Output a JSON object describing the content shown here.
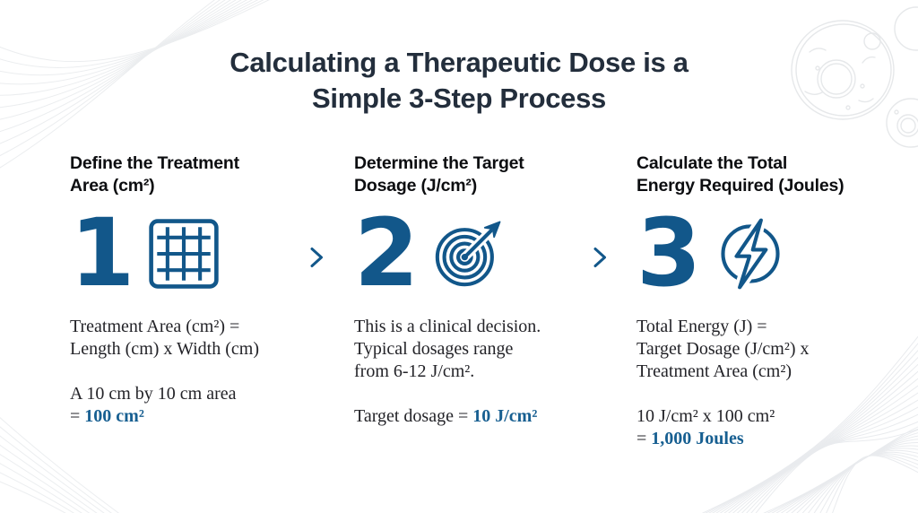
{
  "title": {
    "line1": "Calculating a Therapeutic Dose is a",
    "line2": "Simple 3-Step Process"
  },
  "colors": {
    "accent_icon": "#12578a",
    "accent_text": "#175f91",
    "title_navy": "#232e3c"
  },
  "steps": [
    {
      "number": "1",
      "icon": "grid-icon",
      "heading": "Define the Treatment\nArea (cm²)",
      "body": "Treatment Area (cm²) =\nLength (cm) x Width (cm)",
      "result_prefix": "A 10 cm by 10 cm area\n= ",
      "result_value": "100 cm²"
    },
    {
      "number": "2",
      "icon": "target-icon",
      "heading": "Determine the Target\nDosage (J/cm²)",
      "body": "This is a clinical decision.\nTypical dosages range\nfrom 6-12 J/cm².",
      "result_prefix": "Target dosage = ",
      "result_value": "10 J/cm²"
    },
    {
      "number": "3",
      "icon": "lightning-icon",
      "heading": "Calculate the Total\nEnergy Required (Joules)",
      "body": "Total Energy (J) =\nTarget Dosage (J/cm²) x\nTreatment Area (cm²)",
      "result_prefix": "10 J/cm² x 100 cm²\n= ",
      "result_value": "1,000 Joules"
    }
  ]
}
